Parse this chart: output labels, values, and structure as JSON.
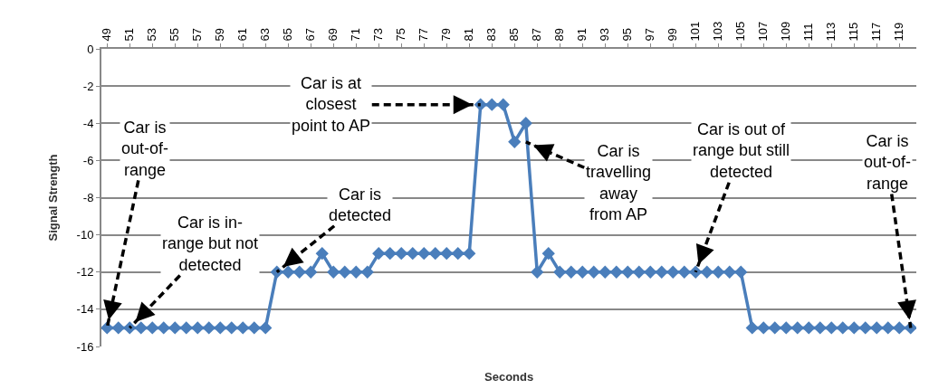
{
  "chart_data": {
    "type": "line",
    "xlabel": "Seconds",
    "ylabel": "Signal Strength",
    "x": [
      49,
      50,
      51,
      52,
      53,
      54,
      55,
      56,
      57,
      58,
      59,
      60,
      61,
      62,
      63,
      64,
      65,
      66,
      67,
      68,
      69,
      70,
      71,
      72,
      73,
      74,
      75,
      76,
      77,
      78,
      79,
      80,
      81,
      82,
      83,
      84,
      85,
      86,
      87,
      88,
      89,
      90,
      91,
      92,
      93,
      94,
      95,
      96,
      97,
      98,
      99,
      100,
      101,
      102,
      103,
      104,
      105,
      106,
      107,
      108,
      109,
      110,
      111,
      112,
      113,
      114,
      115,
      116,
      117,
      118,
      119,
      120
    ],
    "series": [
      {
        "color": "#4a7ebb",
        "values": [
          -15,
          -15,
          -15,
          -15,
          -15,
          -15,
          -15,
          -15,
          -15,
          -15,
          -15,
          -15,
          -15,
          -15,
          -15,
          -12,
          -12,
          -12,
          -12,
          -11,
          -12,
          -12,
          -12,
          -12,
          -11,
          -11,
          -11,
          -11,
          -11,
          -11,
          -11,
          -11,
          -11,
          -3,
          -3,
          -3,
          -5,
          -4,
          -12,
          -11,
          -12,
          -12,
          -12,
          -12,
          -12,
          -12,
          -12,
          -12,
          -12,
          -12,
          -12,
          -12,
          -12,
          -12,
          -12,
          -12,
          -12,
          -15,
          -15,
          -15,
          -15,
          -15,
          -15,
          -15,
          -15,
          -15,
          -15,
          -15,
          -15,
          -15,
          -15,
          -15
        ]
      }
    ],
    "xlim": [
      48.5,
      120.5
    ],
    "xticks": [
      49,
      51,
      53,
      55,
      57,
      59,
      61,
      63,
      65,
      67,
      69,
      71,
      73,
      75,
      77,
      79,
      81,
      83,
      85,
      87,
      89,
      91,
      93,
      95,
      97,
      99,
      101,
      103,
      105,
      107,
      109,
      111,
      113,
      115,
      117,
      119
    ],
    "ylim": [
      -16,
      0
    ],
    "yticks": [
      -16,
      -14,
      -12,
      -10,
      -8,
      -6,
      -4,
      -2,
      0
    ],
    "grid": "y",
    "marker": "diamond",
    "line_style": "solid",
    "annotations": [
      {
        "text": "Car is\nout-of-\nrange",
        "x": 49,
        "y": -15
      },
      {
        "text": "Car is in-\nrange but not\ndetected",
        "x": 51,
        "y": -15
      },
      {
        "text": "Car is\ndetected",
        "x": 64,
        "y": -12
      },
      {
        "text": "Car is at\nclosest\npoint to AP",
        "x": 82,
        "y": -3
      },
      {
        "text": "Car is\ntravelling\naway\nfrom AP",
        "x": 86,
        "y": -5
      },
      {
        "text": "Car is out of\nrange but still\ndetected",
        "x": 101,
        "y": -12
      },
      {
        "text": "Car is\nout-of-\nrange",
        "x": 120,
        "y": -15
      }
    ]
  }
}
